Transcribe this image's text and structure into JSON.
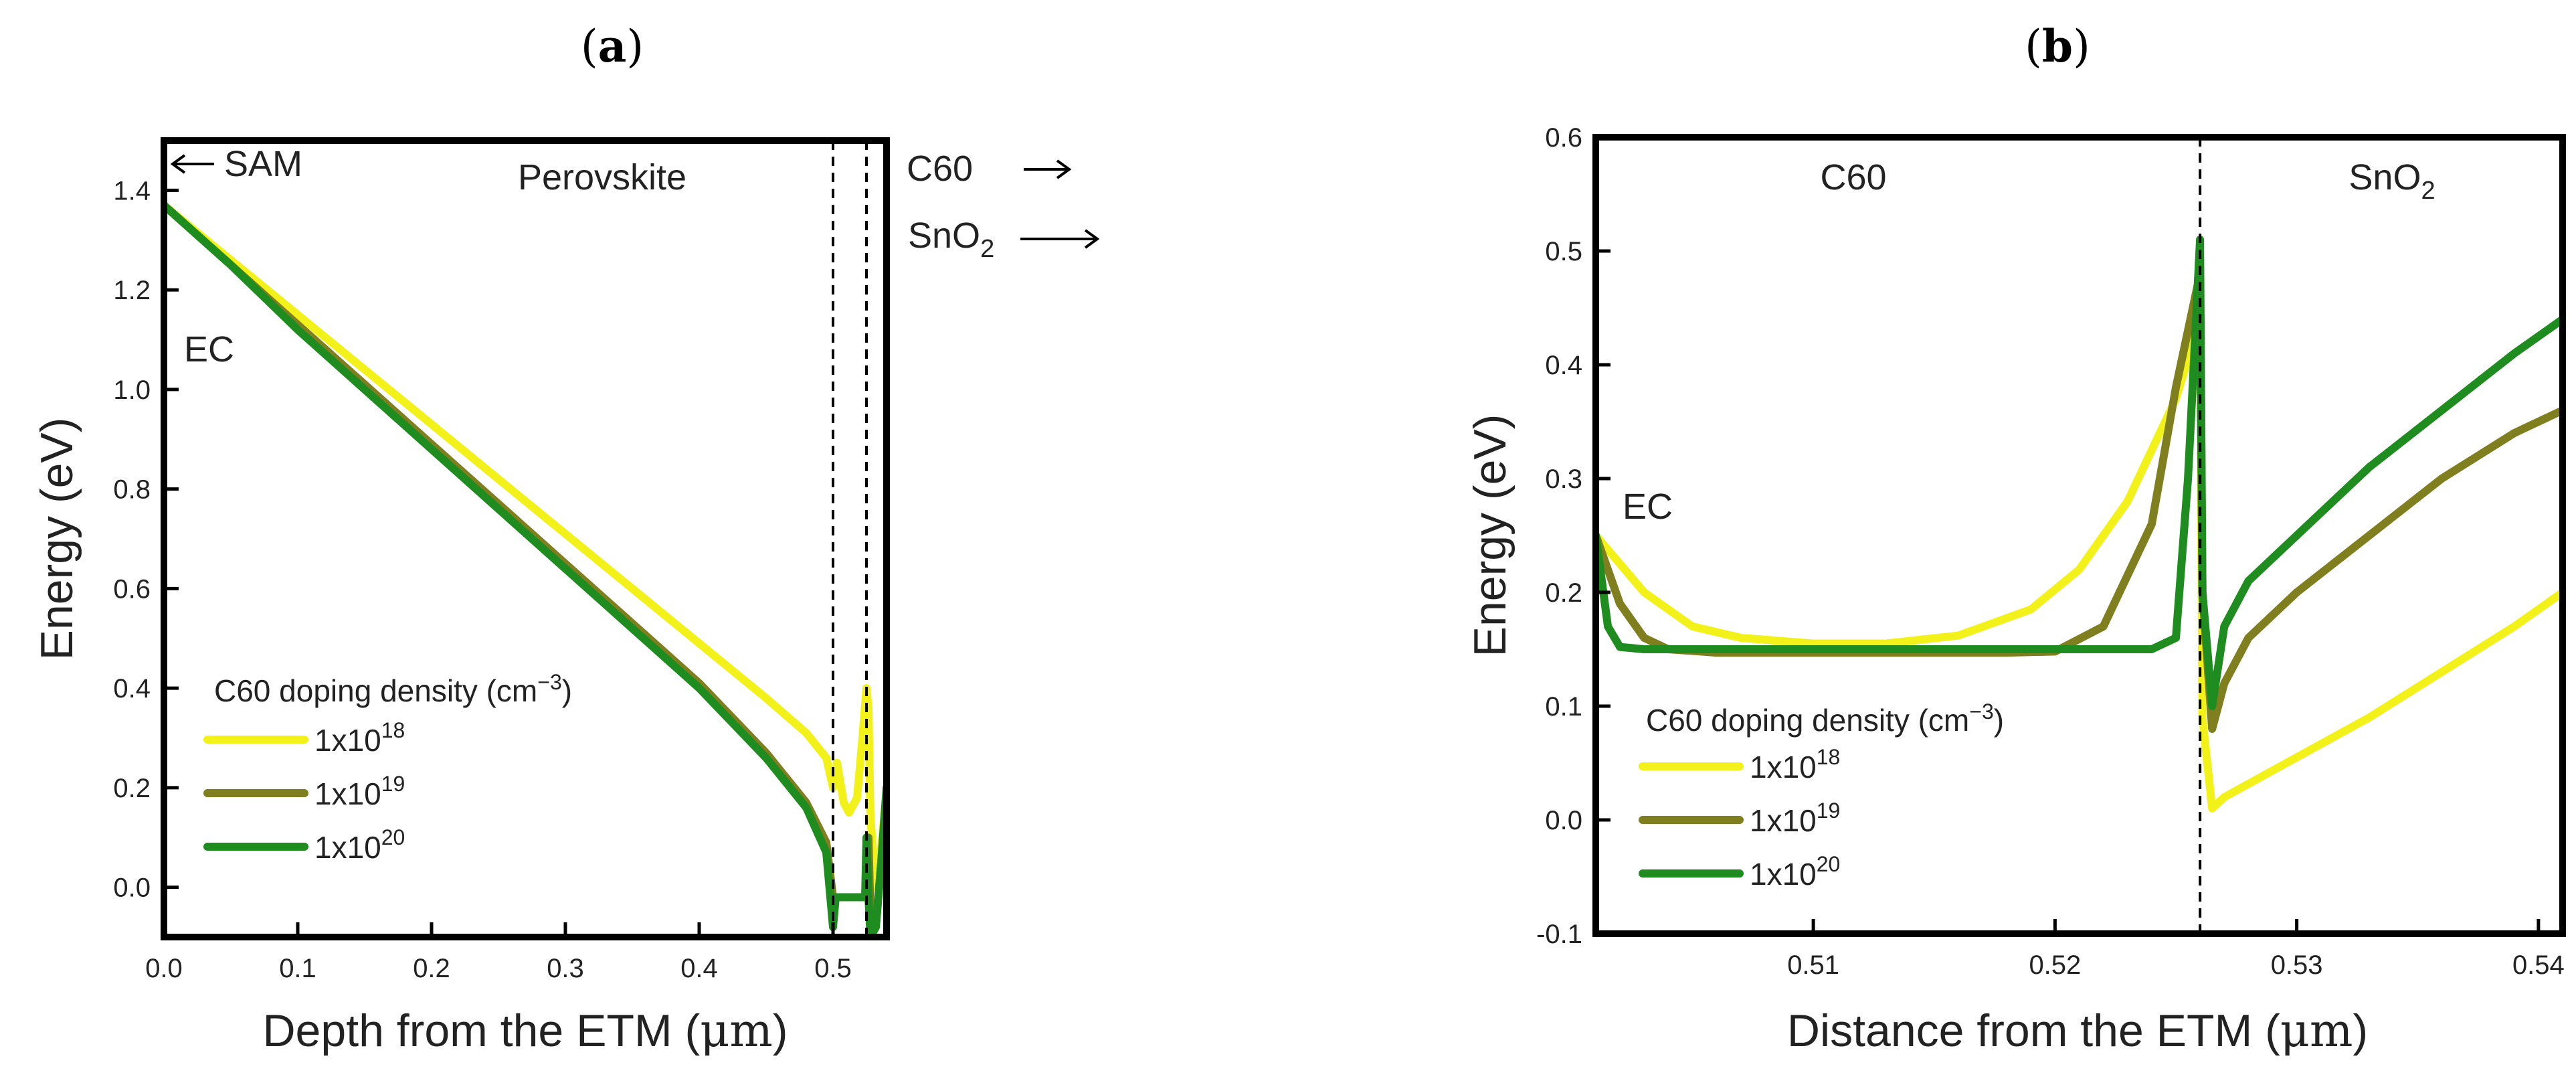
{
  "panels": [
    {
      "label_text": "a"
    },
    {
      "label_text": "b"
    }
  ],
  "chart_data": [
    {
      "type": "line",
      "xlabel": "Depth from the ETM (",
      "xlabel_unit": "μm",
      "ylabel": "Energy (eV)",
      "xlim": [
        0.0,
        0.54
      ],
      "ylim": [
        -0.1,
        1.5
      ],
      "xticks": [
        0.0,
        0.1,
        0.2,
        0.3,
        0.4,
        0.5
      ],
      "xtick_labels": [
        "0.0",
        "0.1",
        "0.2",
        "0.3",
        "0.4",
        "0.5"
      ],
      "yticks": [
        0.0,
        0.2,
        0.4,
        0.6,
        0.8,
        1.0,
        1.2,
        1.4
      ],
      "ytick_labels": [
        "0.0",
        "0.2",
        "0.4",
        "0.6",
        "0.8",
        "1.0",
        "1.2",
        "1.4"
      ],
      "vlines": [
        0.5,
        0.525
      ],
      "annotations": {
        "sam": "SAM",
        "perovskite": "Perovskite",
        "c60": "C60",
        "sno2_base": "SnO",
        "sno2_sub": "2",
        "ec": "EC"
      },
      "legend": {
        "title": "C60 doping density (cm",
        "title_sup": "−3",
        "title_end": ")",
        "entries": [
          {
            "base": "1x10",
            "exp": "18"
          },
          {
            "base": "1x10",
            "exp": "19"
          },
          {
            "base": "1x10",
            "exp": "20"
          }
        ]
      },
      "series": [
        {
          "name": "1x10^18",
          "color": "#f2f21a",
          "x": [
            0.0,
            0.05,
            0.1,
            0.15,
            0.2,
            0.25,
            0.3,
            0.35,
            0.4,
            0.45,
            0.48,
            0.495,
            0.5,
            0.503,
            0.508,
            0.512,
            0.518,
            0.522,
            0.525,
            0.5265,
            0.528,
            0.532,
            0.536,
            0.54
          ],
          "y": [
            1.37,
            1.26,
            1.15,
            1.04,
            0.93,
            0.82,
            0.71,
            0.6,
            0.49,
            0.38,
            0.31,
            0.26,
            0.2,
            0.25,
            0.17,
            0.15,
            0.18,
            0.3,
            0.4,
            0.36,
            0.14,
            0.0,
            0.08,
            0.19
          ]
        },
        {
          "name": "1x10^19",
          "color": "#7f7f1f",
          "x": [
            0.0,
            0.05,
            0.1,
            0.15,
            0.2,
            0.25,
            0.3,
            0.35,
            0.4,
            0.45,
            0.48,
            0.495,
            0.5,
            0.502,
            0.51,
            0.52,
            0.524,
            0.525,
            0.5265,
            0.528,
            0.532,
            0.536,
            0.54
          ],
          "y": [
            1.37,
            1.25,
            1.13,
            1.01,
            0.89,
            0.77,
            0.65,
            0.53,
            0.41,
            0.27,
            0.17,
            0.09,
            -0.02,
            -0.02,
            -0.02,
            -0.02,
            -0.02,
            0.05,
            0.1,
            -0.06,
            -0.08,
            0.05,
            0.18
          ]
        },
        {
          "name": "1x10^20",
          "color": "#1e8c1e",
          "x": [
            0.0,
            0.05,
            0.1,
            0.15,
            0.2,
            0.25,
            0.3,
            0.35,
            0.4,
            0.45,
            0.48,
            0.495,
            0.5,
            0.502,
            0.51,
            0.52,
            0.524,
            0.525,
            0.5265,
            0.528,
            0.532,
            0.536,
            0.54
          ],
          "y": [
            1.37,
            1.25,
            1.12,
            1.0,
            0.88,
            0.76,
            0.64,
            0.52,
            0.4,
            0.26,
            0.16,
            0.07,
            -0.08,
            -0.02,
            -0.02,
            -0.02,
            -0.02,
            0.1,
            -0.02,
            -0.1,
            -0.08,
            0.05,
            0.2
          ]
        }
      ]
    },
    {
      "type": "line",
      "xlabel": "Distance from the ETM (",
      "xlabel_unit": "μm",
      "ylabel": "Energy (eV)",
      "xlim": [
        0.501,
        0.541
      ],
      "ylim": [
        -0.1,
        0.6
      ],
      "xticks": [
        0.51,
        0.52,
        0.53,
        0.54
      ],
      "xtick_labels": [
        "0.51",
        "0.52",
        "0.53",
        "0.54"
      ],
      "yticks": [
        -0.1,
        0.0,
        0.1,
        0.2,
        0.3,
        0.4,
        0.5,
        0.6
      ],
      "ytick_labels": [
        "-0.1",
        "0.0",
        "0.1",
        "0.2",
        "0.3",
        "0.4",
        "0.5",
        "0.6"
      ],
      "vlines": [
        0.526
      ],
      "annotations": {
        "c60": "C60",
        "sno2_base": "SnO",
        "sno2_sub": "2",
        "ec": "EC"
      },
      "legend": {
        "title": "C60 doping density (cm",
        "title_sup": "−3",
        "title_end": ")",
        "entries": [
          {
            "base": "1x10",
            "exp": "18"
          },
          {
            "base": "1x10",
            "exp": "19"
          },
          {
            "base": "1x10",
            "exp": "20"
          }
        ]
      },
      "series": [
        {
          "name": "1x10^18",
          "color": "#f2f21a",
          "x": [
            0.501,
            0.503,
            0.505,
            0.507,
            0.51,
            0.513,
            0.516,
            0.519,
            0.521,
            0.523,
            0.525,
            0.526,
            0.5261,
            0.5265,
            0.527,
            0.53,
            0.533,
            0.536,
            0.539,
            0.541
          ],
          "y": [
            0.25,
            0.2,
            0.17,
            0.16,
            0.155,
            0.155,
            0.162,
            0.185,
            0.22,
            0.28,
            0.37,
            0.44,
            0.09,
            0.01,
            0.02,
            0.055,
            0.09,
            0.13,
            0.17,
            0.2
          ]
        },
        {
          "name": "1x10^19",
          "color": "#7f7f1f",
          "x": [
            0.501,
            0.502,
            0.503,
            0.504,
            0.506,
            0.51,
            0.514,
            0.518,
            0.52,
            0.522,
            0.524,
            0.525,
            0.526,
            0.5261,
            0.5265,
            0.527,
            0.528,
            0.53,
            0.533,
            0.536,
            0.539,
            0.541
          ],
          "y": [
            0.25,
            0.19,
            0.16,
            0.15,
            0.147,
            0.147,
            0.147,
            0.147,
            0.148,
            0.17,
            0.26,
            0.38,
            0.48,
            0.2,
            0.08,
            0.12,
            0.16,
            0.2,
            0.25,
            0.3,
            0.34,
            0.36
          ]
        },
        {
          "name": "1x10^20",
          "color": "#1e8c1e",
          "x": [
            0.501,
            0.5015,
            0.502,
            0.503,
            0.505,
            0.51,
            0.515,
            0.52,
            0.524,
            0.525,
            0.5255,
            0.526,
            0.5261,
            0.5265,
            0.527,
            0.528,
            0.53,
            0.533,
            0.536,
            0.539,
            0.541
          ],
          "y": [
            0.25,
            0.17,
            0.152,
            0.15,
            0.15,
            0.15,
            0.15,
            0.15,
            0.15,
            0.16,
            0.3,
            0.51,
            0.2,
            0.1,
            0.17,
            0.21,
            0.25,
            0.31,
            0.36,
            0.41,
            0.44
          ]
        }
      ]
    }
  ]
}
